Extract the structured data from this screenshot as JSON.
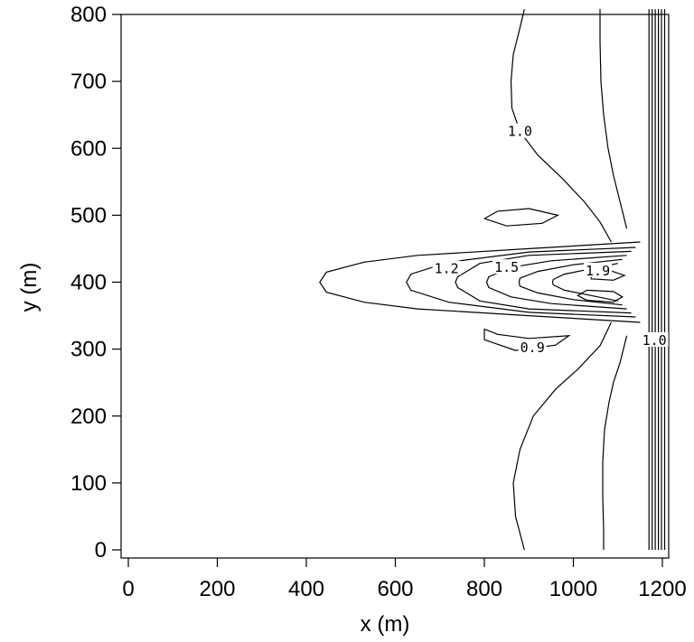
{
  "chart_data": {
    "type": "contour",
    "xlabel": "x (m)",
    "ylabel": "y (m)",
    "xlim": [
      0,
      1210
    ],
    "ylim": [
      -5,
      808
    ],
    "x_ticks": [
      0,
      200,
      400,
      600,
      800,
      1000,
      1200
    ],
    "y_ticks": [
      0,
      100,
      200,
      300,
      400,
      500,
      600,
      700,
      800
    ],
    "grid": false,
    "contour_labels": [
      {
        "text": "1.0",
        "x": 880,
        "y": 625
      },
      {
        "text": "1.2",
        "x": 715,
        "y": 420
      },
      {
        "text": "1.5",
        "x": 850,
        "y": 422
      },
      {
        "text": "1.9",
        "x": 1055,
        "y": 417
      },
      {
        "text": "0.9",
        "x": 908,
        "y": 302
      },
      {
        "text": "1.0",
        "x": 1182,
        "y": 313
      }
    ],
    "contours": [
      {
        "level": "1.0",
        "points": [
          [
            890,
            808
          ],
          [
            880,
            780
          ],
          [
            865,
            740
          ],
          [
            860,
            700
          ],
          [
            862,
            660
          ],
          [
            880,
            625
          ],
          [
            920,
            590
          ],
          [
            975,
            555
          ],
          [
            1025,
            520
          ],
          [
            1060,
            490
          ],
          [
            1085,
            460
          ]
        ]
      },
      {
        "level": "1.0",
        "points": [
          [
            1085,
            340
          ],
          [
            1060,
            305
          ],
          [
            1010,
            270
          ],
          [
            960,
            240
          ],
          [
            910,
            200
          ],
          [
            880,
            150
          ],
          [
            865,
            100
          ],
          [
            870,
            50
          ],
          [
            890,
            0
          ]
        ]
      },
      {
        "level": "",
        "points": [
          [
            1060,
            808
          ],
          [
            1060,
            760
          ],
          [
            1062,
            700
          ],
          [
            1068,
            650
          ],
          [
            1078,
            600
          ],
          [
            1090,
            560
          ],
          [
            1105,
            520
          ],
          [
            1120,
            480
          ]
        ]
      },
      {
        "level": "",
        "points": [
          [
            1120,
            320
          ],
          [
            1105,
            280
          ],
          [
            1090,
            250
          ],
          [
            1080,
            220
          ],
          [
            1070,
            180
          ],
          [
            1066,
            130
          ],
          [
            1066,
            80
          ],
          [
            1068,
            30
          ],
          [
            1068,
            0
          ]
        ]
      },
      {
        "level": "",
        "points": [
          [
            1170,
            808
          ],
          [
            1170,
            0
          ]
        ]
      },
      {
        "level": "",
        "points": [
          [
            1177,
            808
          ],
          [
            1177,
            0
          ]
        ]
      },
      {
        "level": "",
        "points": [
          [
            1184,
            808
          ],
          [
            1184,
            0
          ]
        ]
      },
      {
        "level": "",
        "points": [
          [
            1191,
            808
          ],
          [
            1191,
            0
          ]
        ]
      },
      {
        "level": "",
        "points": [
          [
            1198,
            808
          ],
          [
            1198,
            0
          ]
        ]
      },
      {
        "level": "",
        "points": [
          [
            1205,
            808
          ],
          [
            1205,
            0
          ]
        ]
      },
      {
        "level": "",
        "points": [
          [
            1150,
            460
          ],
          [
            900,
            450
          ],
          [
            650,
            440
          ],
          [
            530,
            430
          ],
          [
            445,
            415
          ],
          [
            430,
            400
          ],
          [
            445,
            385
          ],
          [
            530,
            370
          ],
          [
            650,
            360
          ],
          [
            900,
            350
          ],
          [
            1150,
            340
          ]
        ]
      },
      {
        "level": "1.2",
        "points": [
          [
            1140,
            452
          ],
          [
            900,
            445
          ],
          [
            720,
            430
          ],
          [
            635,
            412
          ],
          [
            625,
            400
          ],
          [
            635,
            388
          ],
          [
            720,
            370
          ],
          [
            900,
            355
          ],
          [
            1140,
            348
          ]
        ]
      },
      {
        "level": "",
        "points": [
          [
            1130,
            446
          ],
          [
            900,
            440
          ],
          [
            790,
            428
          ],
          [
            740,
            408
          ],
          [
            735,
            400
          ],
          [
            740,
            392
          ],
          [
            790,
            372
          ],
          [
            900,
            360
          ],
          [
            1130,
            354
          ]
        ]
      },
      {
        "level": "1.5",
        "points": [
          [
            1120,
            440
          ],
          [
            950,
            432
          ],
          [
            860,
            422
          ],
          [
            810,
            408
          ],
          [
            805,
            400
          ],
          [
            810,
            392
          ],
          [
            860,
            378
          ],
          [
            950,
            368
          ],
          [
            1120,
            360
          ]
        ]
      },
      {
        "level": "",
        "points": [
          [
            1110,
            434
          ],
          [
            1000,
            426
          ],
          [
            920,
            416
          ],
          [
            880,
            406
          ],
          [
            878,
            400
          ],
          [
            880,
            394
          ],
          [
            920,
            384
          ],
          [
            1000,
            374
          ],
          [
            1110,
            366
          ]
        ]
      },
      {
        "level": "",
        "points": [
          [
            1100,
            428
          ],
          [
            1040,
            420
          ],
          [
            980,
            412
          ],
          [
            955,
            404
          ],
          [
            953,
            400
          ],
          [
            955,
            396
          ],
          [
            980,
            388
          ],
          [
            1040,
            380
          ],
          [
            1100,
            372
          ]
        ]
      },
      {
        "level": "1.9",
        "points": [
          [
            1040,
            412
          ],
          [
            1080,
            418
          ],
          [
            1115,
            410
          ],
          [
            1090,
            403
          ],
          [
            1040,
            405
          ],
          [
            1040,
            412
          ]
        ]
      },
      {
        "level": "",
        "points": [
          [
            1030,
            388
          ],
          [
            1010,
            380
          ],
          [
            1030,
            373
          ],
          [
            1090,
            370
          ],
          [
            1110,
            378
          ],
          [
            1090,
            386
          ],
          [
            1030,
            388
          ]
        ]
      },
      {
        "level": "",
        "points": [
          [
            800,
            495
          ],
          [
            830,
            506
          ],
          [
            900,
            510
          ],
          [
            965,
            500
          ],
          [
            930,
            488
          ],
          [
            850,
            484
          ],
          [
            800,
            495
          ]
        ]
      },
      {
        "level": "0.9",
        "points": [
          [
            800,
            330
          ],
          [
            830,
            322
          ],
          [
            900,
            316
          ],
          [
            990,
            320
          ],
          [
            960,
            306
          ],
          [
            870,
            298
          ],
          [
            800,
            314
          ],
          [
            800,
            330
          ]
        ]
      }
    ]
  }
}
